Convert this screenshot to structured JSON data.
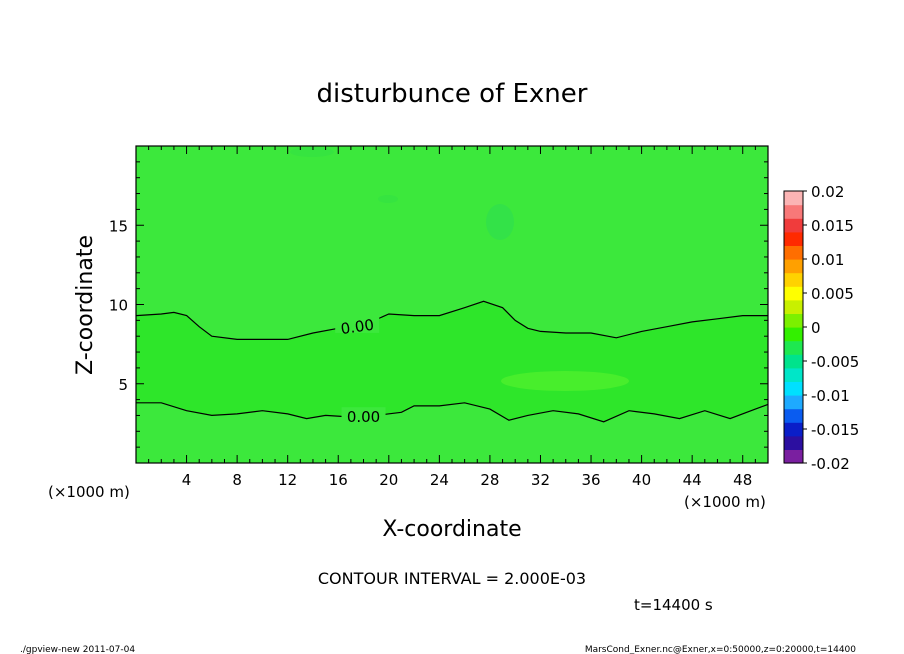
{
  "chart_data": {
    "type": "heatmap",
    "title": "disturbunce of Exner",
    "xlabel": "X-coordinate",
    "ylabel": "Z-coordinate",
    "x_unit": "(×1000 m)",
    "z_unit": "(×1000 m)",
    "xlim": [
      0,
      50
    ],
    "ylim": [
      0,
      20
    ],
    "x_ticks": [
      4,
      8,
      12,
      16,
      20,
      24,
      28,
      32,
      36,
      40,
      44,
      48
    ],
    "y_ticks": [
      5,
      10,
      15
    ],
    "colorbar": {
      "ticks": [
        "0.02",
        "0.015",
        "0.01",
        "0.005",
        "0",
        "-0.005",
        "-0.01",
        "-0.015",
        "-0.02"
      ],
      "range": [
        -0.02,
        0.02
      ],
      "colors": [
        "#7a1fa0",
        "#2c0fa0",
        "#0a1ec8",
        "#0a5cf0",
        "#1eaaff",
        "#00e0ff",
        "#00e6c8",
        "#00e38c",
        "#1ee850",
        "#33f000",
        "#7cf000",
        "#c8f000",
        "#ffff00",
        "#ffd200",
        "#ffa000",
        "#ff6e00",
        "#ff2a00",
        "#f03c3c",
        "#f87878",
        "#fbb4b4"
      ]
    },
    "background_value_color": "#3ce83c",
    "contours": [
      {
        "level": "0.00",
        "points": [
          [
            0,
            9.3
          ],
          [
            2,
            9.4
          ],
          [
            3,
            9.5
          ],
          [
            4,
            9.3
          ],
          [
            5,
            8.6
          ],
          [
            6,
            8.0
          ],
          [
            8,
            7.8
          ],
          [
            10,
            7.8
          ],
          [
            12,
            7.8
          ],
          [
            14,
            8.2
          ],
          [
            16,
            8.5
          ],
          [
            18,
            8.7
          ],
          [
            20,
            9.4
          ],
          [
            22,
            9.3
          ],
          [
            24,
            9.3
          ],
          [
            26,
            9.8
          ],
          [
            27.5,
            10.2
          ],
          [
            29,
            9.8
          ],
          [
            30,
            9.0
          ],
          [
            31,
            8.5
          ],
          [
            32,
            8.3
          ],
          [
            34,
            8.2
          ],
          [
            36,
            8.2
          ],
          [
            38,
            7.9
          ],
          [
            40,
            8.3
          ],
          [
            42,
            8.6
          ],
          [
            44,
            8.9
          ],
          [
            46,
            9.1
          ],
          [
            48,
            9.3
          ],
          [
            50,
            9.3
          ]
        ]
      },
      {
        "level": "0.00",
        "points": [
          [
            0,
            3.8
          ],
          [
            2,
            3.8
          ],
          [
            4,
            3.3
          ],
          [
            6,
            3.0
          ],
          [
            8,
            3.1
          ],
          [
            10,
            3.3
          ],
          [
            12,
            3.1
          ],
          [
            13.5,
            2.8
          ],
          [
            15,
            3.0
          ],
          [
            17,
            2.9
          ],
          [
            19,
            3.0
          ],
          [
            21,
            3.2
          ],
          [
            22,
            3.6
          ],
          [
            24,
            3.6
          ],
          [
            26,
            3.8
          ],
          [
            28,
            3.4
          ],
          [
            29.5,
            2.7
          ],
          [
            31,
            3.0
          ],
          [
            33,
            3.3
          ],
          [
            35,
            3.1
          ],
          [
            37,
            2.6
          ],
          [
            39,
            3.3
          ],
          [
            41,
            3.1
          ],
          [
            43,
            2.8
          ],
          [
            45,
            3.3
          ],
          [
            47,
            2.8
          ],
          [
            49,
            3.4
          ],
          [
            50,
            3.7
          ]
        ]
      }
    ],
    "annotations": {
      "contour_interval": "CONTOUR INTERVAL = 2.000E-03",
      "time": "t=14400 s"
    }
  },
  "footer": {
    "left": "./gpview-new   2011-07-04",
    "right": "MarsCond_Exner.nc@Exner,x=0:50000,z=0:20000,t=14400"
  }
}
